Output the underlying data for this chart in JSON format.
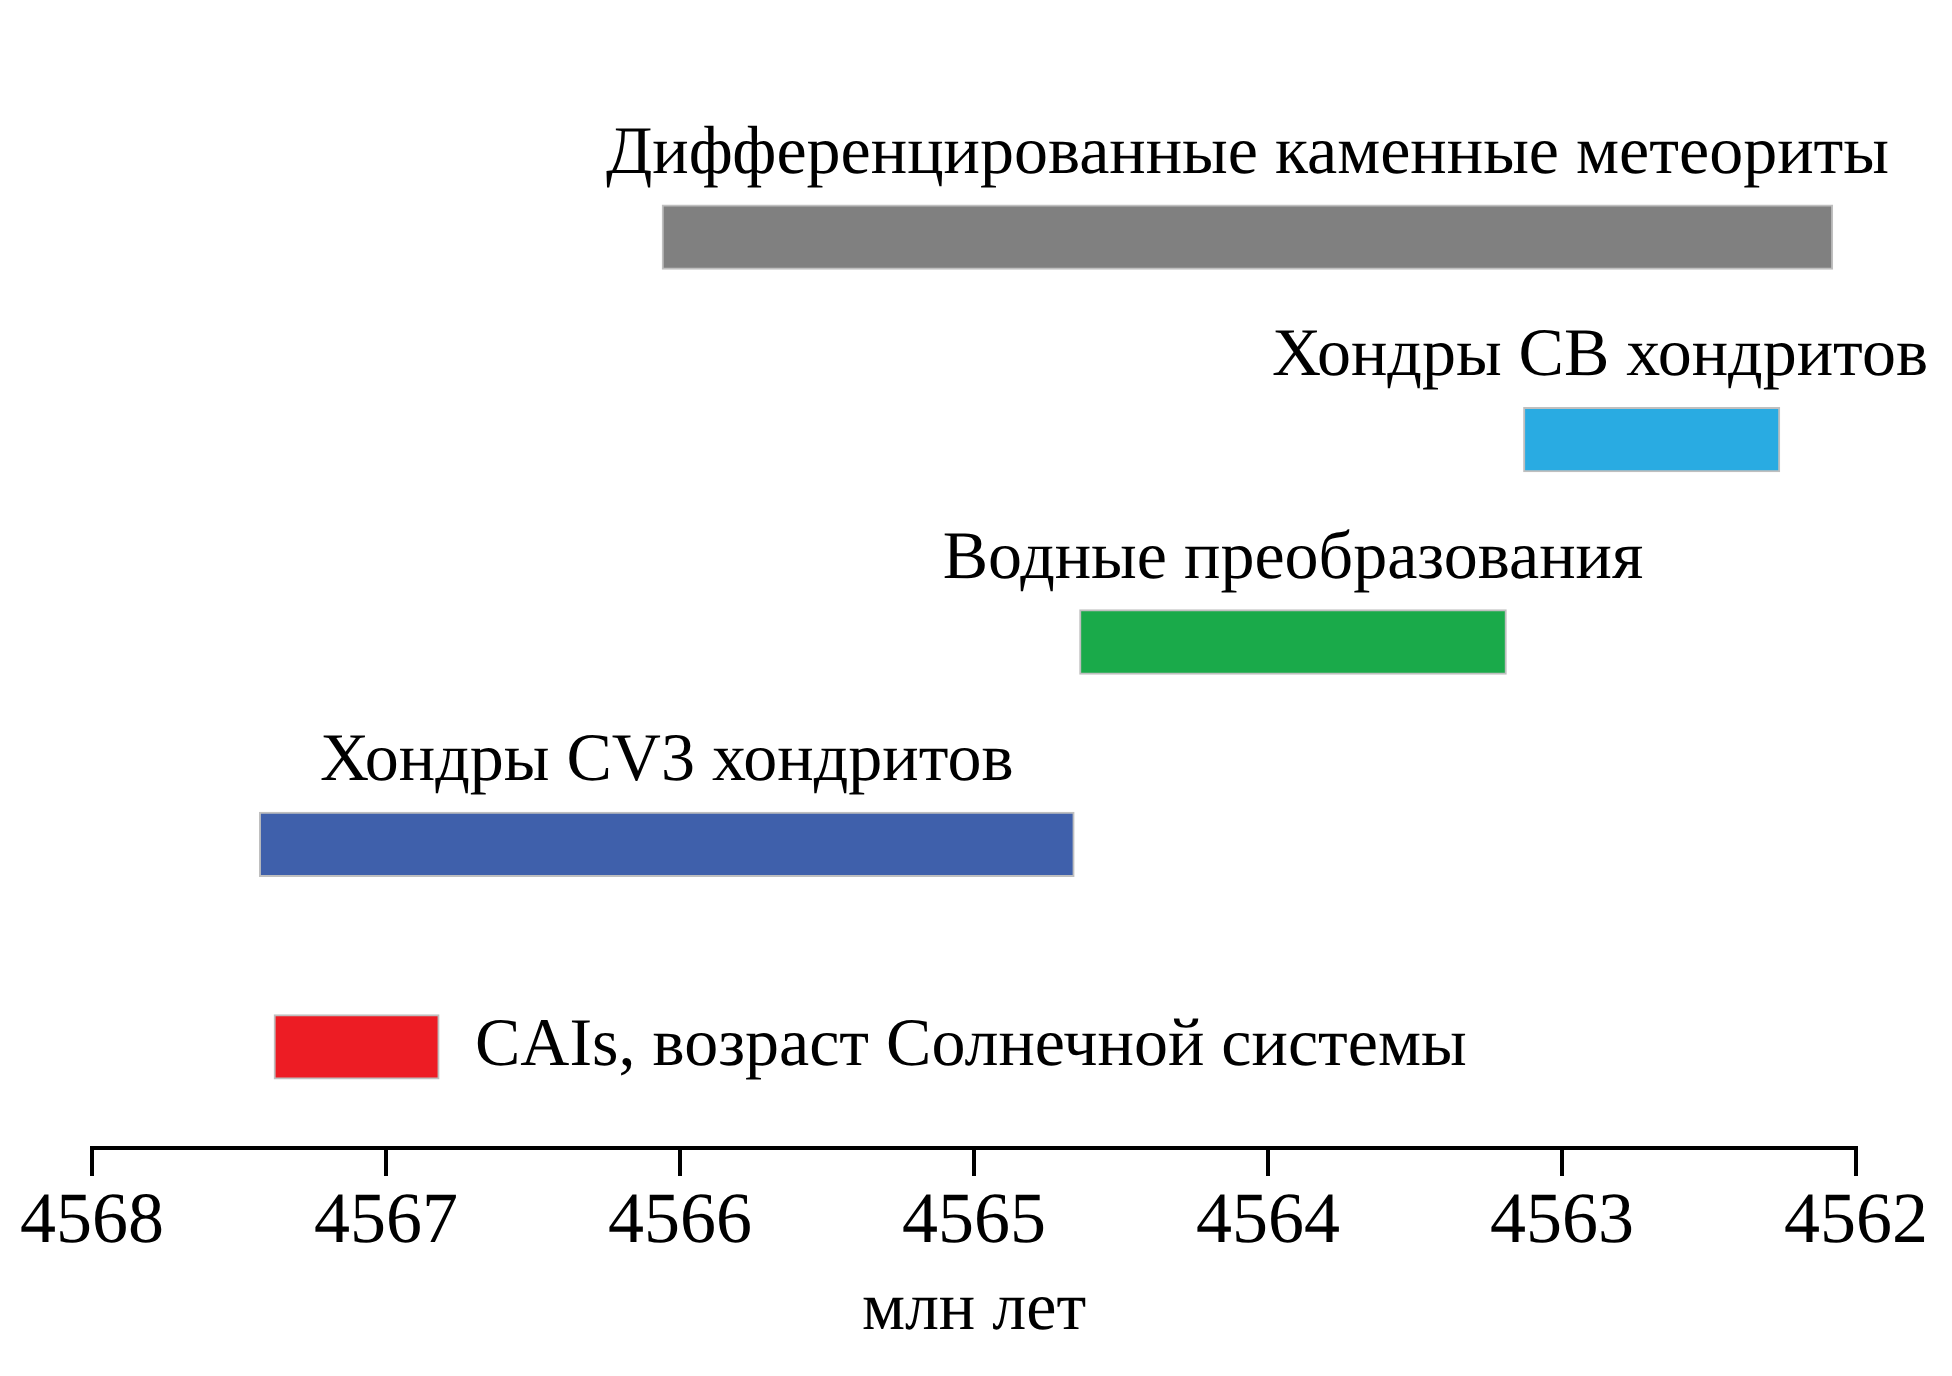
{
  "chart_data": {
    "type": "bar",
    "orientation": "horizontal",
    "xlabel": "млн лет",
    "categories": [
      "Дифференцированные каменные метеориты",
      "Хондры CB хондритов",
      "Водные преобразования",
      "Хондры CV3 хондритов",
      "CAIs, возраст Солнечной системы"
    ],
    "base": [
      4562.08,
      4562.26,
      4563.19,
      4564.66,
      4566.82
    ],
    "values": [
      3.98,
      0.87,
      1.45,
      2.77,
      0.56
    ],
    "colors": [
      "#808080",
      "#29abe2",
      "#1aaa4a",
      "#3f60ab",
      "#ed1c24"
    ],
    "xlim": [
      4568,
      4562
    ],
    "xticks": [
      4568,
      4567,
      4566,
      4565,
      4564,
      4563,
      4562
    ],
    "grid": false,
    "legend": false
  }
}
